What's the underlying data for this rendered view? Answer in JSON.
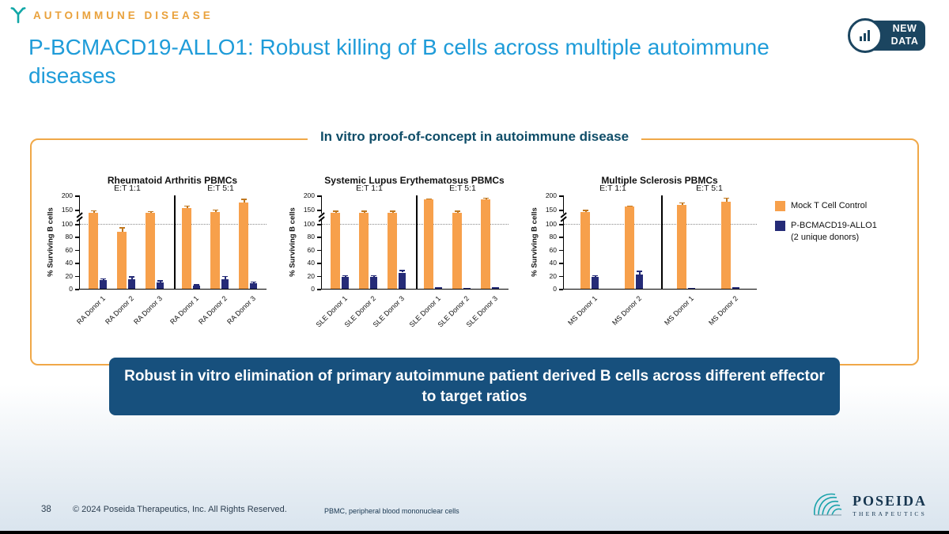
{
  "colors": {
    "mock_bar": "#F7A04B",
    "allo_bar": "#252B77",
    "title_blue": "#1F9CD9",
    "eyebrow_gold": "#E9A13B",
    "icon_teal": "#12A7A7",
    "panel_border": "#F0A848",
    "panel_title": "#0F4D68",
    "banner_bg": "#17507D",
    "badge_bg": "#1B4560",
    "footer_navy": "#16354F"
  },
  "header": {
    "eyebrow": "AUTOIMMUNE DISEASE",
    "title": "P-BCMACD19-ALLO1: Robust killing of B cells across multiple autoimmune diseases",
    "badge_line1": "NEW",
    "badge_line2": "DATA"
  },
  "panel": {
    "title": "In vitro proof-of-concept in autoimmune disease"
  },
  "legend": {
    "items": [
      {
        "label": "Mock T Cell Control",
        "sublabel": "",
        "color_key": "mock_bar"
      },
      {
        "label": "P-BCMACD19-ALLO1",
        "sublabel": "(2 unique donors)",
        "color_key": "allo_bar"
      }
    ]
  },
  "chart_data": [
    {
      "type": "bar",
      "title": "Rheumatoid Arthritis PBMCs",
      "ylabel": "% Surviving B cells",
      "yticks": [
        0,
        20,
        40,
        60,
        80,
        100,
        150,
        200
      ],
      "ylim": [
        0,
        200
      ],
      "axis_break": [
        100,
        150
      ],
      "reference_line": 100,
      "groups": [
        {
          "label": "E:T 1:1",
          "categories": [
            "RA Donor 1",
            "RA Donor 2",
            "RA Donor 3"
          ],
          "series": [
            {
              "name": "Mock T Cell Control",
              "values": [
                140,
                88,
                140
              ],
              "errors": [
                8,
                7,
                5
              ]
            },
            {
              "name": "P-BCMACD19-ALLO1",
              "values": [
                13,
                15,
                10
              ],
              "errors": [
                3,
                4,
                3
              ]
            }
          ]
        },
        {
          "label": "E:T 5:1",
          "categories": [
            "RA Donor 1",
            "RA Donor 2",
            "RA Donor 3"
          ],
          "series": [
            {
              "name": "Mock T Cell Control",
              "values": [
                155,
                143,
                175
              ],
              "errors": [
                10,
                8,
                13
              ]
            },
            {
              "name": "P-BCMACD19-ALLO1",
              "values": [
                5,
                15,
                8
              ],
              "errors": [
                2,
                5,
                3
              ]
            }
          ]
        }
      ]
    },
    {
      "type": "bar",
      "title": "Systemic Lupus Erythematosus PBMCs",
      "ylabel": "% Surviving B cells",
      "yticks": [
        0,
        20,
        40,
        60,
        80,
        100,
        150,
        200
      ],
      "ylim": [
        0,
        200
      ],
      "axis_break": [
        100,
        150
      ],
      "reference_line": 100,
      "groups": [
        {
          "label": "E:T 1:1",
          "categories": [
            "SLE Donor 1",
            "SLE Donor 2",
            "SLE Donor 3"
          ],
          "series": [
            {
              "name": "Mock T Cell Control",
              "values": [
                140,
                140,
                138
              ],
              "errors": [
                7,
                7,
                8
              ]
            },
            {
              "name": "P-BCMACD19-ALLO1",
              "values": [
                18,
                18,
                25
              ],
              "errors": [
                3,
                3,
                4
              ]
            }
          ]
        },
        {
          "label": "E:T 5:1",
          "categories": [
            "SLE Donor 1",
            "SLE Donor 2",
            "SLE Donor 3"
          ],
          "series": [
            {
              "name": "Mock T Cell Control",
              "values": [
                185,
                140,
                185
              ],
              "errors": [
                5,
                6,
                7
              ]
            },
            {
              "name": "P-BCMACD19-ALLO1",
              "values": [
                2,
                1,
                2
              ],
              "errors": [
                1,
                1,
                1
              ]
            }
          ]
        }
      ]
    },
    {
      "type": "bar",
      "title": "Multiple Sclerosis PBMCs",
      "ylabel": "% Surviving B cells",
      "yticks": [
        0,
        20,
        40,
        60,
        80,
        100,
        150,
        200
      ],
      "ylim": [
        0,
        200
      ],
      "axis_break": [
        100,
        150
      ],
      "reference_line": 100,
      "groups": [
        {
          "label": "E:T 1:1",
          "categories": [
            "MS Donor 1",
            "MS Donor 2"
          ],
          "series": [
            {
              "name": "Mock T Cell Control",
              "values": [
                142,
                160
              ],
              "errors": [
                8,
                5
              ]
            },
            {
              "name": "P-BCMACD19-ALLO1",
              "values": [
                18,
                22
              ],
              "errors": [
                3,
                6
              ]
            }
          ]
        },
        {
          "label": "E:T 5:1",
          "categories": [
            "MS Donor 1",
            "MS Donor 2"
          ],
          "series": [
            {
              "name": "Mock T Cell Control",
              "values": [
                168,
                178
              ],
              "errors": [
                8,
                14
              ]
            },
            {
              "name": "P-BCMACD19-ALLO1",
              "values": [
                1,
                2
              ],
              "errors": [
                1,
                1
              ]
            }
          ]
        }
      ]
    }
  ],
  "banner": {
    "text": "Robust in vitro elimination of primary autoimmune patient derived B cells across different effector to target ratios"
  },
  "footer": {
    "page_number": "38",
    "copyright": "© 2024 Poseida Therapeutics, Inc. All Rights Reserved.",
    "abbreviation_note": "PBMC, peripheral blood mononuclear cells",
    "logo_text": "POSEIDA",
    "logo_subtext": "THERAPEUTICS"
  }
}
